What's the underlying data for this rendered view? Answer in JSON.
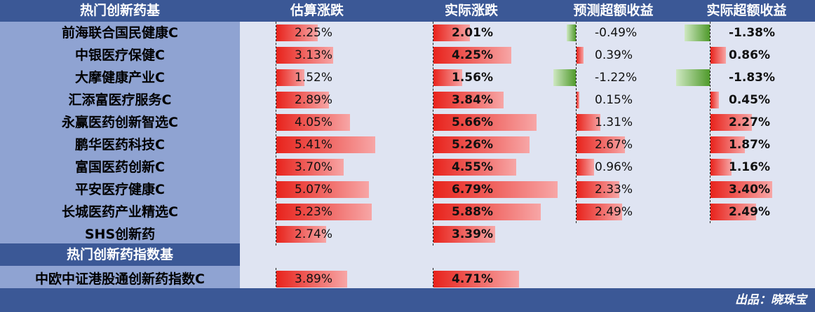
{
  "headers": {
    "name": "热门创新药基",
    "est": "估算涨跌",
    "actual": "实际涨跌",
    "pred_excess": "预测超额收益",
    "actual_excess": "实际超额收益"
  },
  "subheader": "热门创新药指数基",
  "credit": "出品：晓珠宝",
  "colors": {
    "header_bg": "#3b5896",
    "name_bg": "#8fa3d2",
    "value_bg": "#dfe4f2",
    "positive": "#e8231c",
    "negative": "#4f9a2b"
  },
  "rows": [
    {
      "name": "前海联合国民健康C",
      "est": "2.25%",
      "est_v": 2.25,
      "actual": "2.01%",
      "actual_v": 2.01,
      "pred": "-0.49%",
      "pred_v": -0.49,
      "excess": "-1.38%",
      "excess_v": -1.38
    },
    {
      "name": "中银医疗保健C",
      "est": "3.13%",
      "est_v": 3.13,
      "actual": "4.25%",
      "actual_v": 4.25,
      "pred": "0.39%",
      "pred_v": 0.39,
      "excess": "0.86%",
      "excess_v": 0.86
    },
    {
      "name": "大摩健康产业C",
      "est": "1.52%",
      "est_v": 1.52,
      "actual": "1.56%",
      "actual_v": 1.56,
      "pred": "-1.22%",
      "pred_v": -1.22,
      "excess": "-1.83%",
      "excess_v": -1.83
    },
    {
      "name": "汇添富医疗服务C",
      "est": "2.89%",
      "est_v": 2.89,
      "actual": "3.84%",
      "actual_v": 3.84,
      "pred": "0.15%",
      "pred_v": 0.15,
      "excess": "0.45%",
      "excess_v": 0.45
    },
    {
      "name": "永赢医药创新智选C",
      "est": "4.05%",
      "est_v": 4.05,
      "actual": "5.66%",
      "actual_v": 5.66,
      "pred": "1.31%",
      "pred_v": 1.31,
      "excess": "2.27%",
      "excess_v": 2.27
    },
    {
      "name": "鹏华医药科技C",
      "est": "5.41%",
      "est_v": 5.41,
      "actual": "5.26%",
      "actual_v": 5.26,
      "pred": "2.67%",
      "pred_v": 2.67,
      "excess": "1.87%",
      "excess_v": 1.87
    },
    {
      "name": "富国医药创新C",
      "est": "3.70%",
      "est_v": 3.7,
      "actual": "4.55%",
      "actual_v": 4.55,
      "pred": "0.96%",
      "pred_v": 0.96,
      "excess": "1.16%",
      "excess_v": 1.16
    },
    {
      "name": "平安医疗健康C",
      "est": "5.07%",
      "est_v": 5.07,
      "actual": "6.79%",
      "actual_v": 6.79,
      "pred": "2.33%",
      "pred_v": 2.33,
      "excess": "3.40%",
      "excess_v": 3.4
    },
    {
      "name": "长城医药产业精选C",
      "est": "5.23%",
      "est_v": 5.23,
      "actual": "5.88%",
      "actual_v": 5.88,
      "pred": "2.49%",
      "pred_v": 2.49,
      "excess": "2.49%",
      "excess_v": 2.49
    },
    {
      "name": "SHS创新药",
      "est": "2.74%",
      "est_v": 2.74,
      "actual": "3.39%",
      "actual_v": 3.39,
      "pred": "",
      "pred_v": null,
      "excess": "",
      "excess_v": null
    }
  ],
  "index_rows": [
    {
      "name": "中欧中证港股通创新药指数C",
      "est": "3.89%",
      "est_v": 3.89,
      "actual": "4.71%",
      "actual_v": 4.71,
      "pred": "",
      "pred_v": null,
      "excess": "",
      "excess_v": null
    }
  ]
}
